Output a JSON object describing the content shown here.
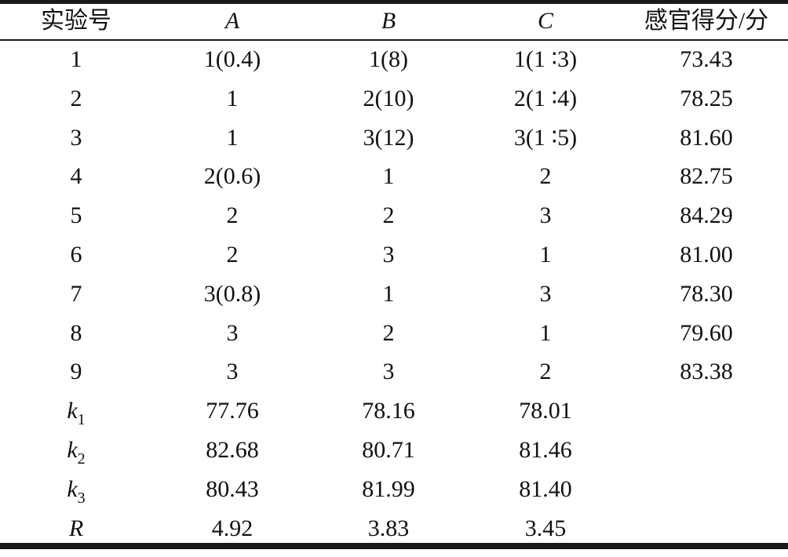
{
  "table": {
    "headers": [
      "实验号",
      "A",
      "B",
      "C",
      "感官得分/分"
    ],
    "rows": [
      [
        "1",
        "1(0.4)",
        "1(8)",
        "1(1 ∶3)",
        "73.43"
      ],
      [
        "2",
        "1",
        "2(10)",
        "2(1 ∶4)",
        "78.25"
      ],
      [
        "3",
        "1",
        "3(12)",
        "3(1 ∶5)",
        "81.60"
      ],
      [
        "4",
        "2(0.6)",
        "1",
        "2",
        "82.75"
      ],
      [
        "5",
        "2",
        "2",
        "3",
        "84.29"
      ],
      [
        "6",
        "2",
        "3",
        "1",
        "81.00"
      ],
      [
        "7",
        "3(0.8)",
        "1",
        "3",
        "78.30"
      ],
      [
        "8",
        "3",
        "2",
        "1",
        "79.60"
      ],
      [
        "9",
        "3",
        "3",
        "2",
        "83.38"
      ]
    ],
    "summary": [
      {
        "label": "k",
        "sub": "1",
        "values": [
          "77.76",
          "78.16",
          "78.01"
        ]
      },
      {
        "label": "k",
        "sub": "2",
        "values": [
          "82.68",
          "80.71",
          "81.46"
        ]
      },
      {
        "label": "k",
        "sub": "3",
        "values": [
          "80.43",
          "81.99",
          "81.40"
        ]
      },
      {
        "label": "R",
        "sub": "",
        "values": [
          "4.92",
          "3.83",
          "3.45"
        ]
      }
    ]
  }
}
